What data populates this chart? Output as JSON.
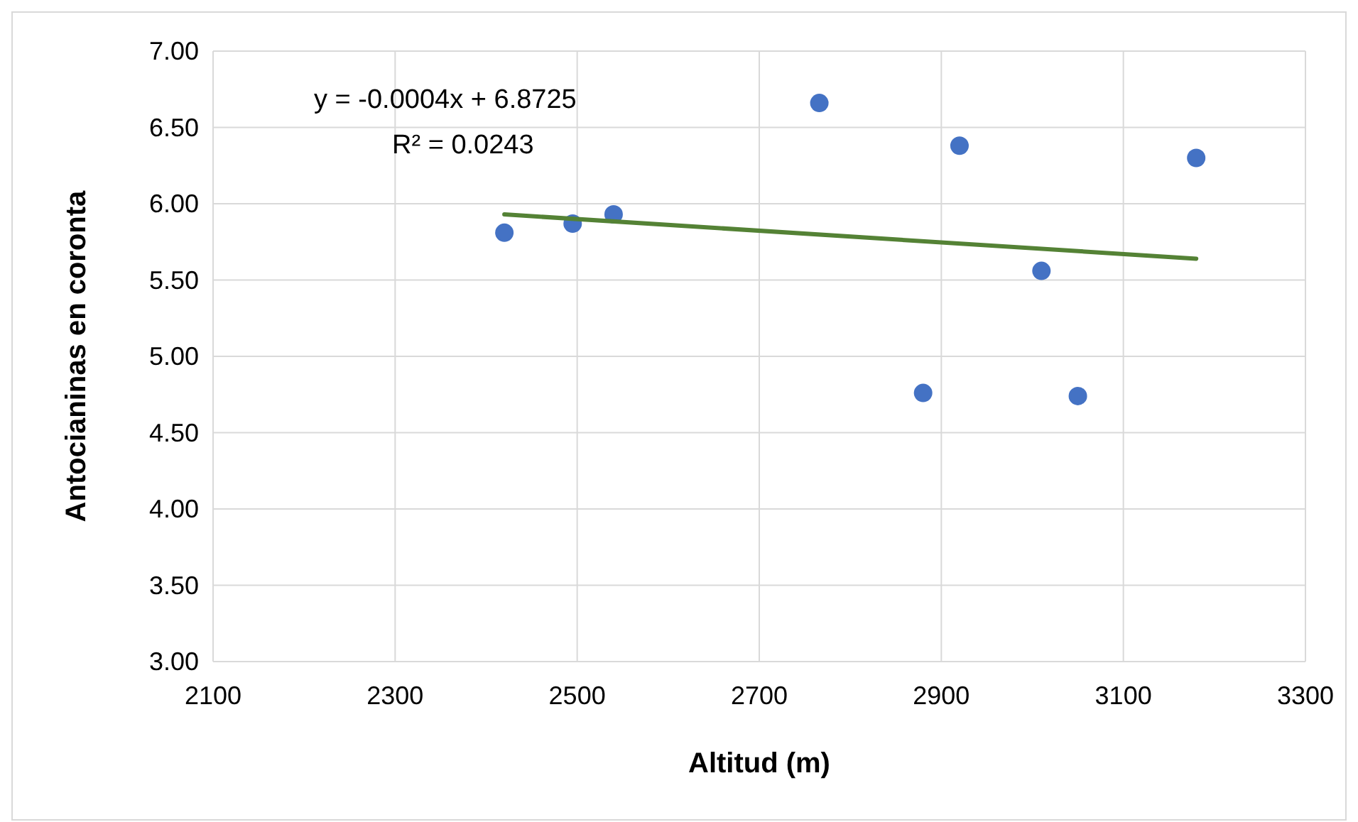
{
  "chart_data": {
    "type": "scatter",
    "xlabel": "Altitud (m)",
    "ylabel": "Antocianinas en coronta",
    "xlim": [
      2100,
      3300
    ],
    "xticks": [
      2100,
      2300,
      2500,
      2700,
      2900,
      3100,
      3300
    ],
    "ylim": [
      3,
      7
    ],
    "yticks": [
      {
        "value": 3,
        "label": "3.00"
      },
      {
        "value": 3.5,
        "label": "3.50"
      },
      {
        "value": 4,
        "label": "4.00"
      },
      {
        "value": 4.5,
        "label": "4.50"
      },
      {
        "value": 5,
        "label": "5.00"
      },
      {
        "value": 5.5,
        "label": "5.50"
      },
      {
        "value": 6,
        "label": "6.00"
      },
      {
        "value": 6.5,
        "label": "6.50"
      },
      {
        "value": 7,
        "label": "7.00"
      }
    ],
    "grid": true,
    "marker": "circle",
    "annotations": [
      "y = -0.0004x + 6.8725",
      "R² = 0.0243"
    ],
    "series": [
      {
        "color": "#4472c4",
        "x": [
          2420,
          2495,
          2540,
          2766,
          2880,
          2920,
          3010,
          3050,
          3180
        ],
        "values": [
          5.81,
          5.87,
          5.93,
          6.66,
          4.76,
          6.38,
          5.56,
          4.74,
          6.3
        ]
      },
      {
        "type": "line",
        "color": "#548235",
        "marker": "none",
        "x": [
          2420,
          3180
        ],
        "values": [
          5.93,
          5.64
        ]
      }
    ]
  }
}
